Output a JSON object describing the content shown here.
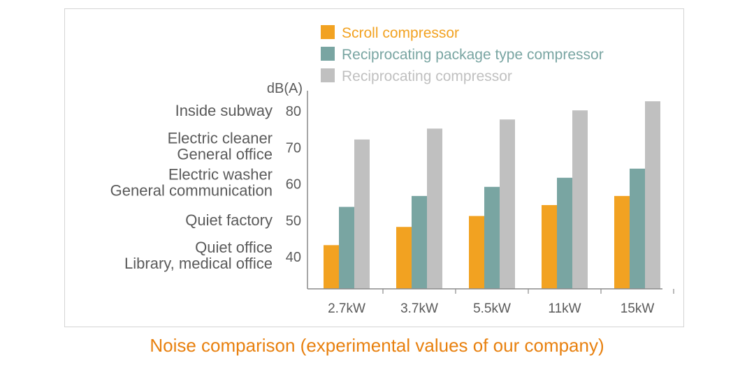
{
  "caption": "Noise comparison (experimental values of our company)",
  "colors": {
    "scroll": "#f2a221",
    "package": "#79a5a2",
    "reciprocating": "#c0c0c0",
    "axis": "#8a8a8a",
    "text": "#5a5a5a"
  },
  "chart_data": {
    "type": "bar",
    "unit_label": "dB(A)",
    "categories": [
      "2.7kW",
      "3.7kW",
      "5.5kW",
      "11kW",
      "15kW"
    ],
    "series": [
      {
        "name": "Scroll compressor",
        "color": "#f2a221",
        "values": [
          43,
          48,
          51,
          54,
          56.5
        ]
      },
      {
        "name": "Reciprocating package type compressor",
        "color": "#79a5a2",
        "values": [
          53.5,
          56.5,
          59,
          61.5,
          64
        ]
      },
      {
        "name": "Reciprocating compressor",
        "color": "#c0c0c0",
        "values": [
          72,
          75,
          77.5,
          80,
          82.5
        ]
      }
    ],
    "yticks": [
      40,
      50,
      60,
      70,
      80
    ],
    "ylim": [
      31,
      86
    ],
    "legend_position": "top",
    "grid": false,
    "reference_labels": [
      {
        "value": 80,
        "lines": [
          "Inside subway"
        ]
      },
      {
        "value": 70,
        "lines": [
          "Electric cleaner",
          "General office"
        ]
      },
      {
        "value": 60,
        "lines": [
          "Electric washer",
          "General communication"
        ]
      },
      {
        "value": 50,
        "lines": [
          "Quiet factory"
        ]
      },
      {
        "value": 40,
        "lines": [
          "Quiet office",
          "Library, medical office"
        ]
      }
    ]
  }
}
